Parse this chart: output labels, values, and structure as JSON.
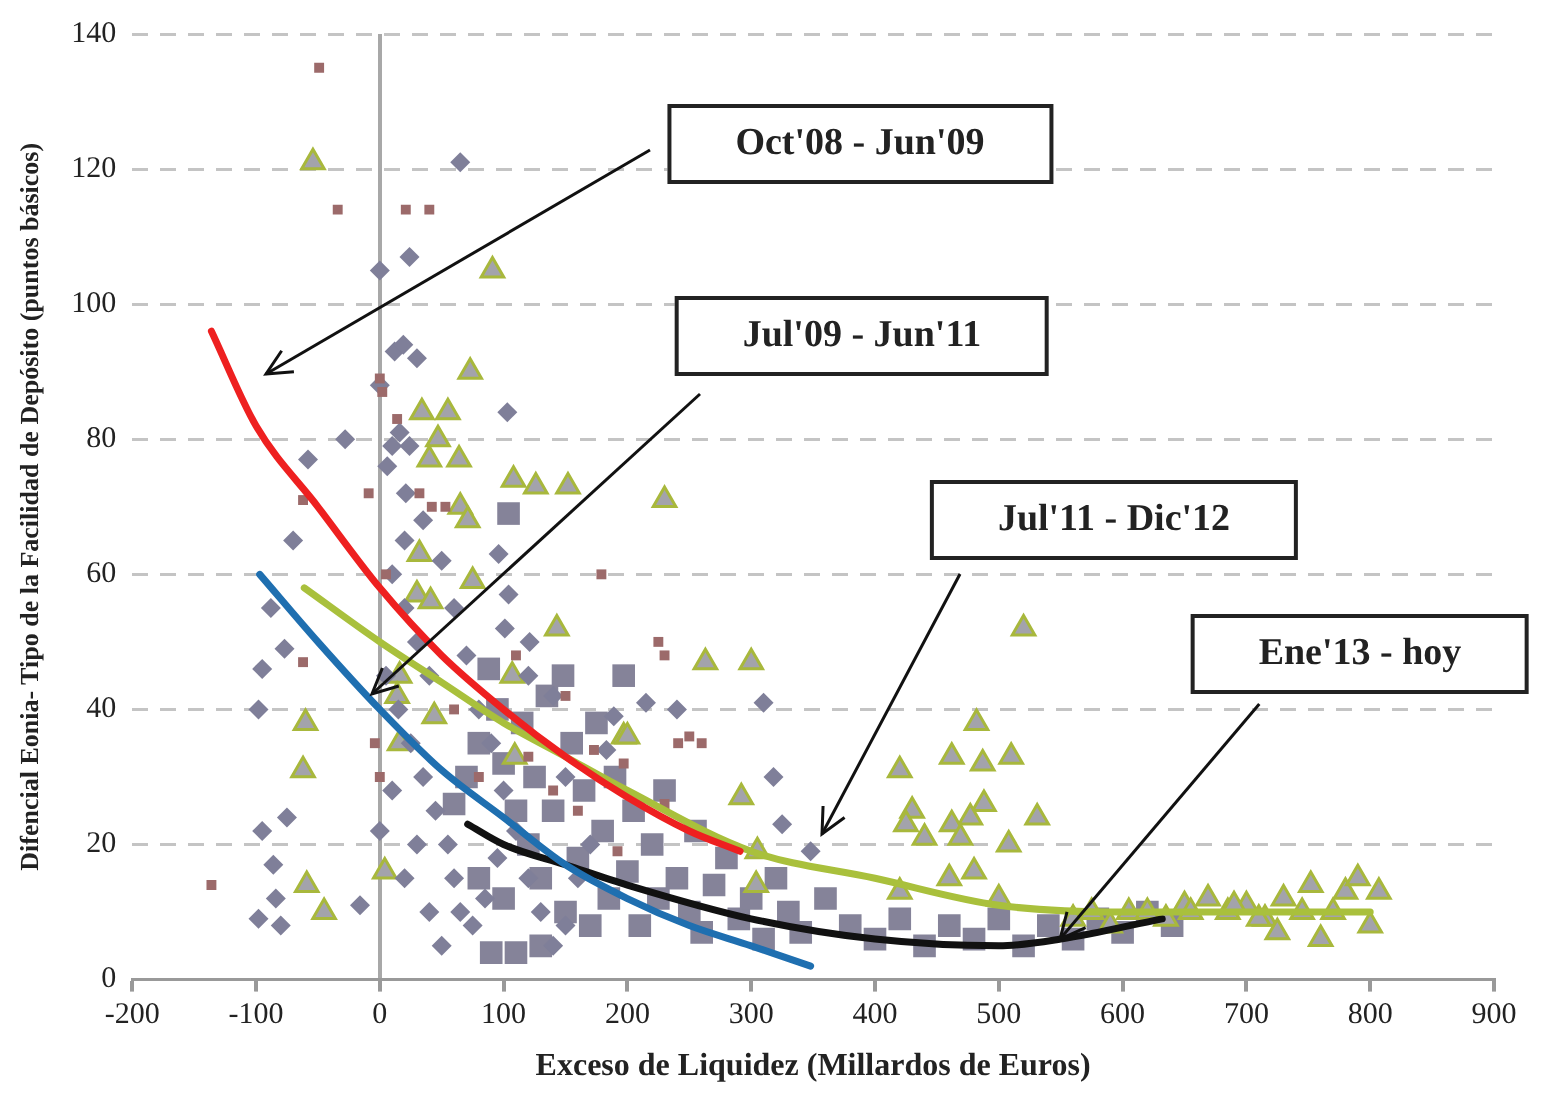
{
  "chart_data": {
    "type": "scatter",
    "xlabel": "Exceso de Liquidez (Millardos de Euros)",
    "ylabel": "Difencial Eonia- Tipo de la Facilidad de Depósito (puntos básicos)",
    "xlim": [
      -200,
      900
    ],
    "xticks": [
      -200,
      -100,
      0,
      100,
      200,
      300,
      400,
      500,
      600,
      700,
      800,
      900
    ],
    "ylim": [
      0,
      140
    ],
    "yticks": [
      0,
      20,
      40,
      60,
      80,
      100,
      120,
      140
    ],
    "grid": "y",
    "legend": false,
    "annotations": [
      "Oct'08 - Jun'09",
      "Jul'09 - Jun'11",
      "Jul'11 - Dic'12",
      {
        "text": "Ene'13 - hoy",
        "x": 550,
        "y": 6
      }
    ],
    "series": [
      {
        "type": "scatter",
        "marker": "square",
        "color": "#9c6a6a",
        "x": [
          -49,
          -34,
          21,
          40,
          0,
          2,
          14,
          -9,
          -62,
          32,
          42,
          53,
          -136,
          -62,
          5,
          -4,
          0,
          179,
          173,
          192,
          225,
          230,
          241,
          250,
          197,
          60,
          80,
          120,
          140,
          160,
          230,
          260,
          150,
          110
        ],
        "values": [
          135,
          114,
          114,
          114,
          89,
          87,
          83,
          72,
          71,
          72,
          70,
          70,
          14,
          47,
          60,
          35,
          30,
          60,
          34,
          19,
          50,
          48,
          35,
          36,
          32,
          40,
          30,
          33,
          28,
          25,
          26,
          35,
          42,
          48
        ]
      },
      {
        "type": "scatter",
        "marker": "diamond",
        "color": "#7f7f99",
        "x": [
          65,
          24,
          0,
          12,
          19,
          30,
          0,
          103,
          -28,
          -58,
          16,
          10,
          24,
          6,
          21,
          -70,
          -88,
          -77,
          -95,
          -98,
          -75,
          -95,
          -86,
          -98,
          -80,
          -84,
          -16,
          0,
          96,
          104,
          101,
          121,
          189,
          310,
          318,
          325,
          348,
          240,
          215,
          183,
          10,
          20,
          30,
          40,
          15,
          25,
          35,
          45,
          55,
          60,
          65,
          75,
          85,
          95,
          30,
          20,
          40,
          50,
          10,
          5,
          20,
          35,
          50,
          60,
          70,
          80,
          90,
          100,
          110,
          120,
          130,
          140,
          150,
          160,
          170,
          120,
          140,
          150
        ],
        "values": [
          121,
          107,
          105,
          93,
          94,
          92,
          88,
          84,
          80,
          77,
          81,
          79,
          79,
          76,
          72,
          65,
          55,
          49,
          46,
          40,
          24,
          22,
          17,
          9,
          8,
          12,
          11,
          22,
          63,
          57,
          52,
          50,
          39,
          41,
          30,
          23,
          19,
          40,
          41,
          34,
          60,
          55,
          50,
          45,
          40,
          35,
          30,
          25,
          20,
          15,
          10,
          8,
          12,
          18,
          20,
          15,
          10,
          5,
          28,
          45,
          65,
          68,
          62,
          55,
          48,
          40,
          35,
          28,
          22,
          15,
          10,
          5,
          8,
          15,
          20,
          45,
          42,
          30
        ]
      },
      {
        "type": "scatter",
        "marker": "triangle",
        "color": "#a8b83c",
        "x": [
          -54,
          91,
          73,
          34,
          55,
          47,
          64,
          40,
          65,
          108,
          126,
          152,
          71,
          75,
          32,
          30,
          41,
          143,
          107,
          16,
          14,
          44,
          16,
          197,
          -60,
          -62,
          4,
          -59,
          -45,
          109,
          230,
          263,
          300,
          200,
          520,
          482,
          462,
          487,
          510,
          420,
          488,
          531,
          477,
          462,
          430,
          440,
          425,
          292,
          304,
          305,
          420,
          460,
          480,
          500,
          469,
          508,
          560,
          575,
          590,
          605,
          620,
          635,
          650,
          669,
          685,
          700,
          715,
          730,
          752,
          760,
          770,
          780,
          790,
          800,
          807,
          745,
          725,
          710,
          690,
          655
        ],
        "values": [
          121,
          105,
          90,
          84,
          84,
          80,
          77,
          77,
          70,
          74,
          73,
          73,
          68,
          59,
          63,
          57,
          56,
          52,
          45,
          45,
          42,
          39,
          35,
          36,
          38,
          31,
          16,
          14,
          10,
          33,
          71,
          47,
          47,
          36,
          52,
          38,
          33,
          32,
          33,
          31,
          26,
          24,
          24,
          23,
          25,
          21,
          23,
          27,
          14,
          19,
          13,
          15,
          16,
          12,
          21,
          20,
          9,
          10,
          8,
          10,
          10,
          9,
          11,
          12,
          10,
          11,
          9,
          12,
          14,
          6,
          10,
          13,
          15,
          8,
          13,
          10,
          7,
          9,
          11,
          10
        ]
      },
      {
        "type": "scatter",
        "marker": "square",
        "color": "#858399",
        "x": [
          60,
          70,
          80,
          88,
          95,
          100,
          104,
          110,
          115,
          120,
          125,
          130,
          135,
          140,
          148,
          150,
          155,
          160,
          165,
          170,
          175,
          180,
          185,
          190,
          197,
          200,
          205,
          210,
          220,
          225,
          230,
          240,
          250,
          255,
          260,
          270,
          280,
          290,
          300,
          310,
          320,
          330,
          340,
          360,
          380,
          400,
          420,
          440,
          460,
          480,
          500,
          520,
          540,
          560,
          580,
          600,
          620,
          640,
          90,
          110,
          130,
          100,
          80
        ],
        "values": [
          26,
          30,
          35,
          46,
          40,
          32,
          69,
          25,
          38,
          20,
          30,
          15,
          42,
          25,
          45,
          10,
          35,
          18,
          28,
          8,
          38,
          22,
          12,
          30,
          45,
          16,
          25,
          8,
          20,
          12,
          28,
          15,
          10,
          22,
          7,
          14,
          18,
          9,
          12,
          6,
          15,
          10,
          7,
          12,
          8,
          6,
          9,
          5,
          8,
          6,
          9,
          5,
          8,
          6,
          9,
          7,
          10,
          8,
          4,
          4,
          5,
          12,
          15
        ]
      },
      {
        "type": "line",
        "marker": "none",
        "color": "#ee2020",
        "x": [
          -136,
          -100,
          -50,
          0,
          50,
          100,
          150,
          200,
          250,
          291
        ],
        "values": [
          96,
          82,
          70,
          58,
          48,
          40,
          33,
          27,
          22,
          19
        ]
      },
      {
        "type": "line",
        "marker": "none",
        "color": "#1f6fb0",
        "x": [
          -97,
          -50,
          0,
          50,
          100,
          150,
          200,
          250,
          300,
          348
        ],
        "values": [
          60,
          50,
          40,
          31,
          24,
          17,
          12,
          8,
          5,
          2
        ]
      },
      {
        "type": "line",
        "marker": "none",
        "color": "#a9c03c",
        "x": [
          -61,
          0,
          50,
          100,
          150,
          200,
          300,
          400,
          500,
          600,
          700,
          800
        ],
        "values": [
          58,
          50,
          44,
          38,
          33,
          28,
          19,
          15,
          11,
          10,
          10,
          10
        ]
      },
      {
        "type": "line",
        "marker": "none",
        "color": "#111111",
        "x": [
          71,
          100,
          150,
          200,
          300,
          400,
          500,
          550,
          632
        ],
        "values": [
          23,
          20,
          17,
          14,
          9,
          6,
          5,
          6,
          9
        ]
      }
    ]
  }
}
